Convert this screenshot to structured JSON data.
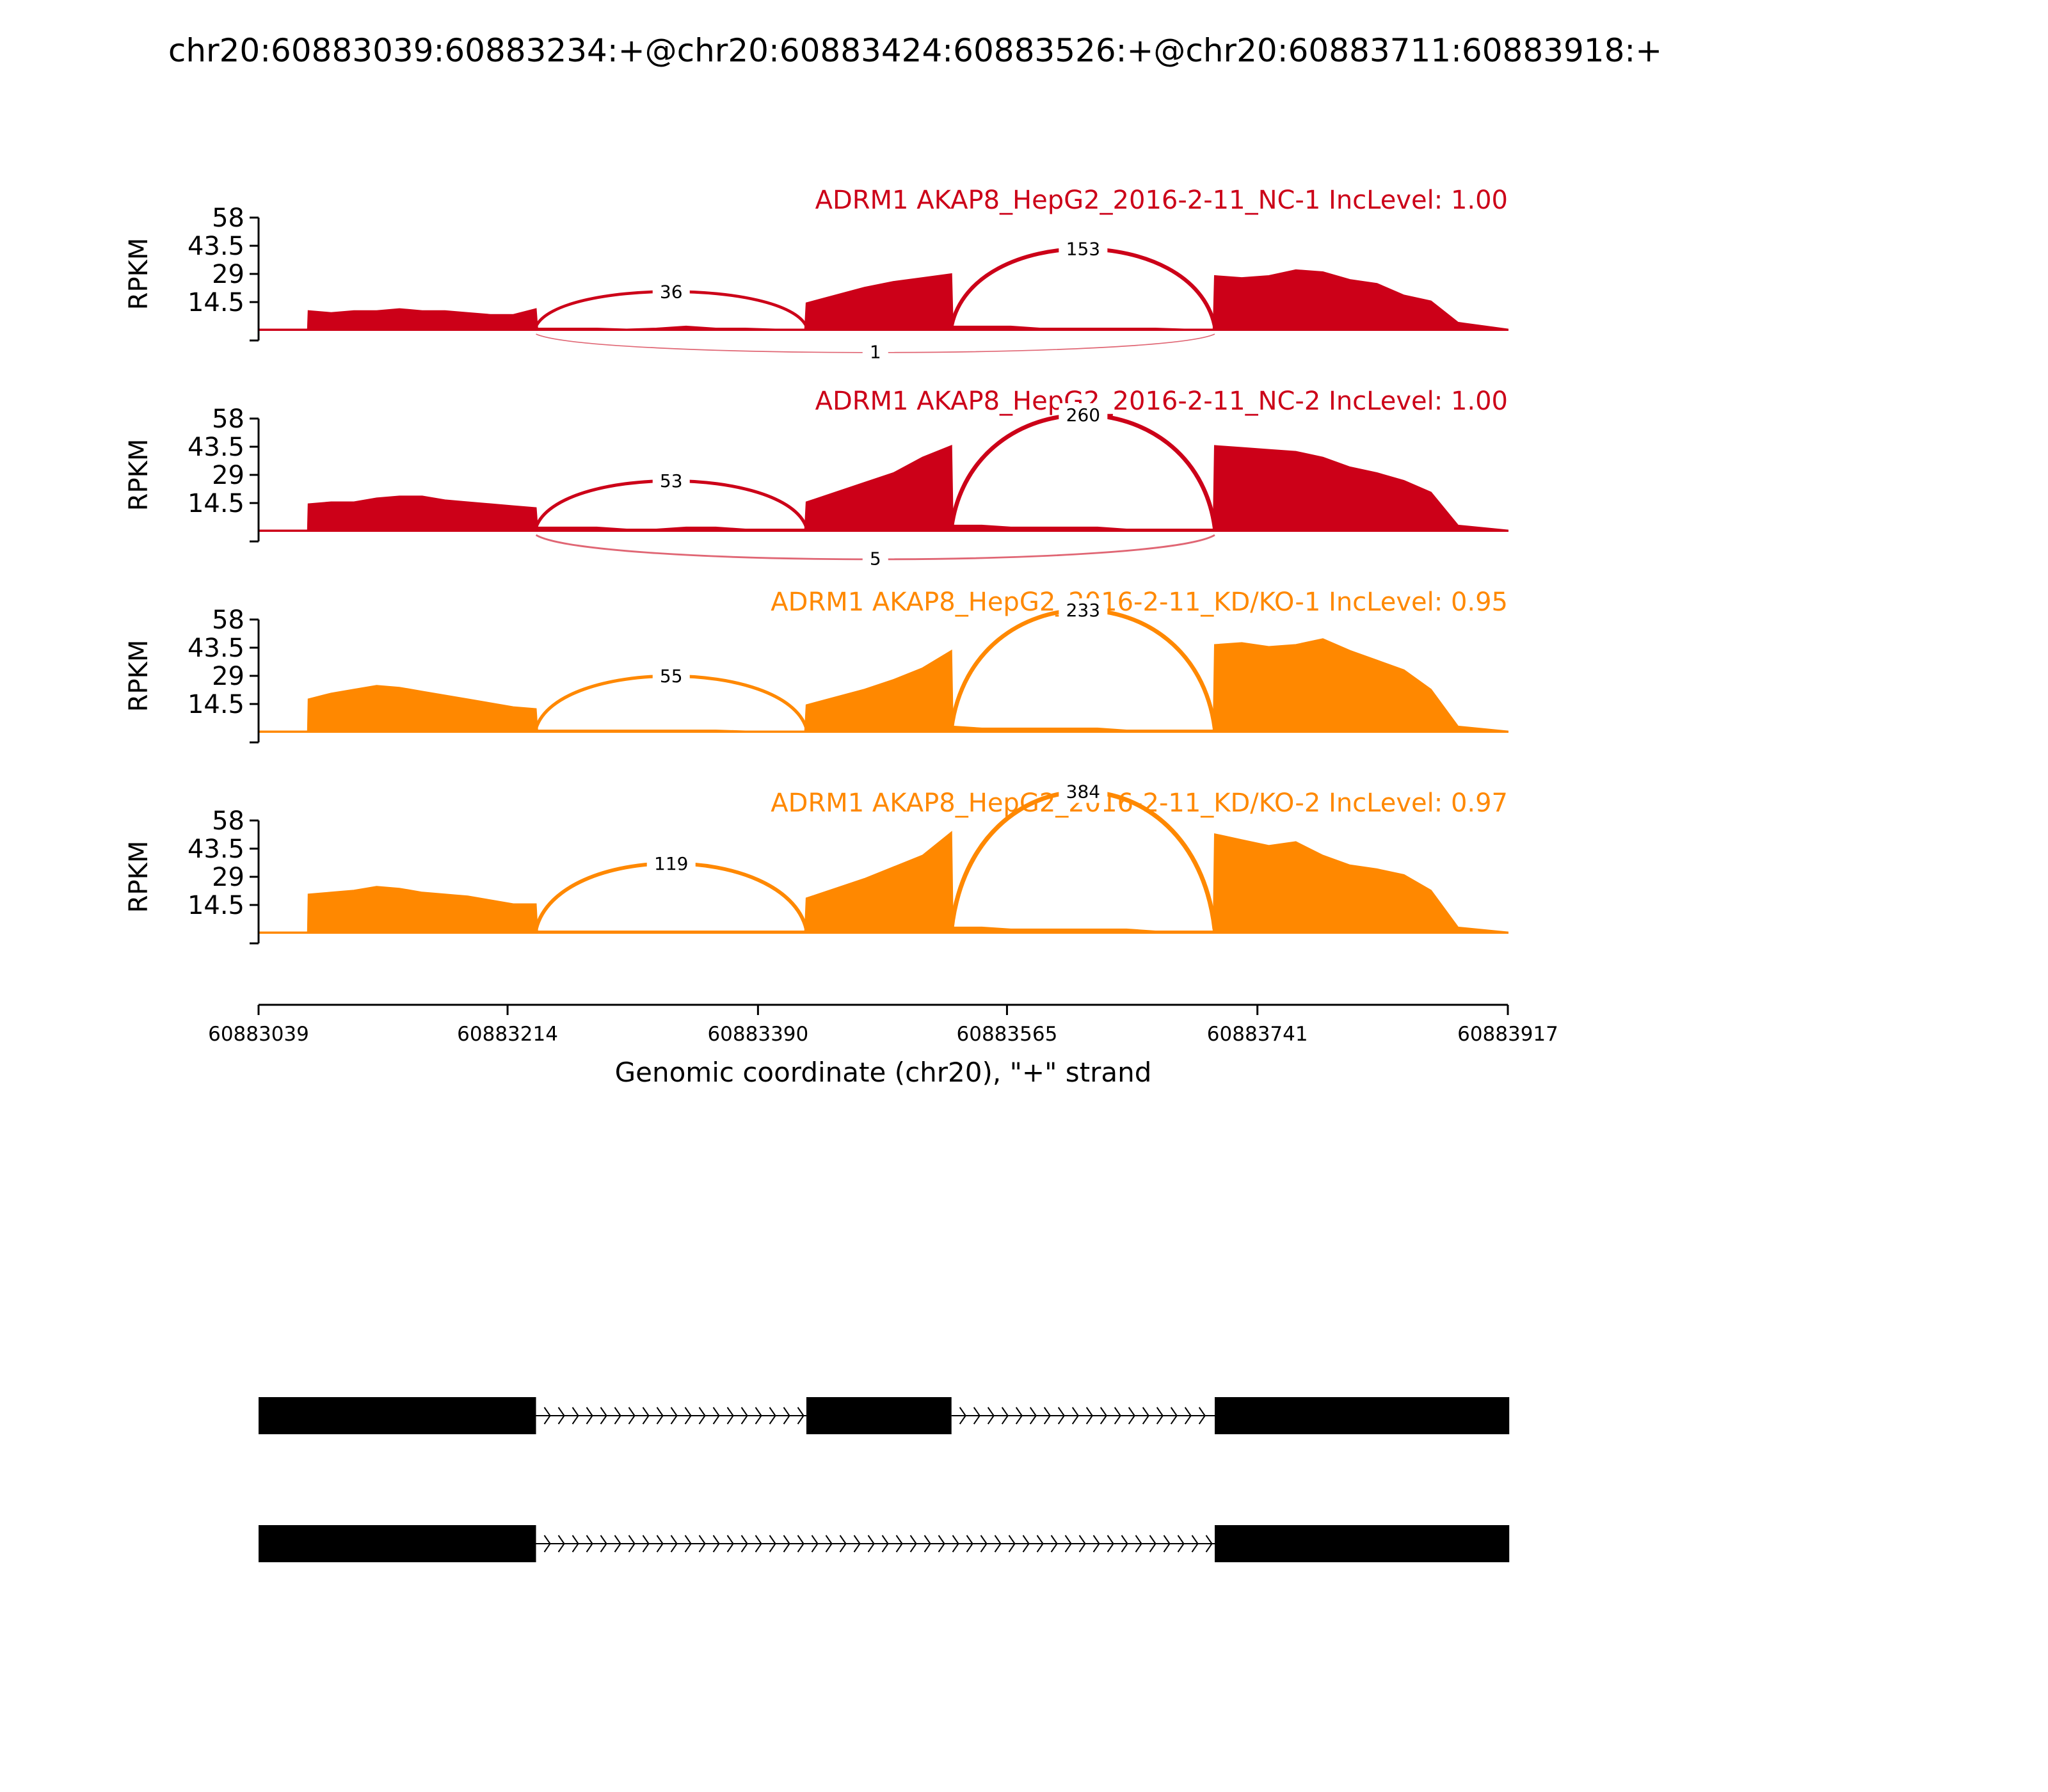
{
  "title": "chr20:60883039:60883234:+@chr20:60883424:60883526:+@chr20:60883711:60883918:+",
  "colors": {
    "nc": "#cc0018",
    "kd": "#ff8800",
    "axis": "#000000",
    "gene": "#000000"
  },
  "chart_data": {
    "type": "area",
    "title": "chr20:60883039:60883234:+@chr20:60883424:60883526:+@chr20:60883711:60883918:+",
    "ylabel": "RPKM",
    "xlabel": "Genomic coordinate (chr20), \"+\" strand",
    "ylim": [
      0,
      58
    ],
    "yticks": [
      14.5,
      29,
      43.5,
      58
    ],
    "ytick_labels": [
      "14.5",
      "29",
      "43.5",
      "58"
    ],
    "xlim": [
      60883039,
      60883917
    ],
    "xticks": [
      60883039,
      60883214,
      60883390,
      60883565,
      60883741,
      60883917
    ],
    "xtick_labels": [
      "60883039",
      "60883214",
      "60883390",
      "60883565",
      "60883741",
      "60883917"
    ],
    "exons": [
      [
        60883074,
        60883234
      ],
      [
        60883424,
        60883526
      ],
      [
        60883711,
        60883882
      ]
    ],
    "tracks": [
      {
        "name": "ADRM1 AKAP8_HepG2_2016-2-11_NC-1 IncLevel: 1.00",
        "group": "nc",
        "levels": [
          10,
          9,
          10,
          10,
          11,
          10,
          10,
          9,
          8,
          8,
          11,
          14,
          18,
          22,
          25,
          27,
          29,
          28,
          27,
          28,
          31,
          30,
          26,
          24,
          18,
          15,
          4
        ],
        "intron": [
          1,
          1,
          1,
          0.5,
          1,
          2,
          1,
          1,
          0.5,
          0.5
        ],
        "intron2": [
          2,
          2,
          2,
          1,
          1,
          1,
          1,
          1,
          0.5,
          0.5
        ],
        "junctions": [
          {
            "start": 60883234,
            "end": 60883424,
            "count": 36,
            "side": "above",
            "label_y": 18
          },
          {
            "start": 60883526,
            "end": 60883711,
            "count": 153,
            "side": "above",
            "label_y": 40
          },
          {
            "start": 60883234,
            "end": 60883711,
            "count": 1,
            "side": "below",
            "label_y": -11
          }
        ]
      },
      {
        "name": "ADRM1 AKAP8_HepG2_2016-2-11_NC-2 IncLevel: 1.00",
        "group": "nc",
        "levels": [
          14,
          15,
          15,
          17,
          18,
          18,
          16,
          15,
          14,
          13,
          12,
          15,
          20,
          25,
          30,
          38,
          44,
          44,
          43,
          42,
          41,
          38,
          33,
          30,
          26,
          20,
          3
        ],
        "intron": [
          2,
          2,
          2,
          1,
          1,
          2,
          2,
          1,
          1,
          1
        ],
        "intron2": [
          3,
          3,
          2,
          2,
          2,
          2,
          1,
          1,
          1,
          1
        ],
        "junctions": [
          {
            "start": 60883234,
            "end": 60883424,
            "count": 53,
            "side": "above",
            "label_y": 24
          },
          {
            "start": 60883526,
            "end": 60883711,
            "count": 260,
            "side": "above",
            "label_y": 58
          },
          {
            "start": 60883234,
            "end": 60883711,
            "count": 5,
            "side": "below",
            "label_y": -14
          }
        ]
      },
      {
        "name": "ADRM1 AKAP8_HepG2_2016-2-11_KD/KO-1 IncLevel: 0.95",
        "group": "kd",
        "levels": [
          17,
          20,
          22,
          24,
          23,
          21,
          19,
          17,
          15,
          13,
          12,
          14,
          18,
          22,
          27,
          33,
          42,
          45,
          46,
          44,
          45,
          48,
          42,
          37,
          32,
          22,
          3
        ],
        "intron": [
          1,
          1,
          1,
          1,
          1,
          1,
          1,
          0.5,
          0.5,
          0.5
        ],
        "intron2": [
          3,
          2,
          2,
          2,
          2,
          2,
          1,
          1,
          1,
          1
        ],
        "junctions": [
          {
            "start": 60883234,
            "end": 60883424,
            "count": 55,
            "side": "above",
            "label_y": 27
          },
          {
            "start": 60883526,
            "end": 60883711,
            "count": 233,
            "side": "above",
            "label_y": 61
          }
        ]
      },
      {
        "name": "ADRM1 AKAP8_HepG2_2016-2-11_KD/KO-2 IncLevel: 0.97",
        "group": "kd",
        "levels": [
          20,
          21,
          22,
          24,
          23,
          21,
          20,
          19,
          17,
          15,
          15,
          18,
          23,
          28,
          34,
          40,
          52,
          51,
          48,
          45,
          47,
          40,
          35,
          33,
          30,
          22,
          3
        ],
        "intron": [
          1,
          1,
          1,
          1,
          1,
          1,
          1,
          1,
          1,
          1
        ],
        "intron2": [
          3,
          3,
          2,
          2,
          2,
          2,
          2,
          1,
          1,
          1
        ],
        "junctions": [
          {
            "start": 60883234,
            "end": 60883424,
            "count": 119,
            "side": "above",
            "label_y": 34
          },
          {
            "start": 60883526,
            "end": 60883711,
            "count": 384,
            "side": "above",
            "label_y": 71
          }
        ]
      }
    ],
    "isoforms": [
      {
        "exons": [
          [
            60883039,
            60883234
          ],
          [
            60883424,
            60883526
          ],
          [
            60883711,
            60883918
          ]
        ]
      },
      {
        "exons": [
          [
            60883039,
            60883234
          ],
          [
            60883711,
            60883918
          ]
        ]
      }
    ]
  }
}
